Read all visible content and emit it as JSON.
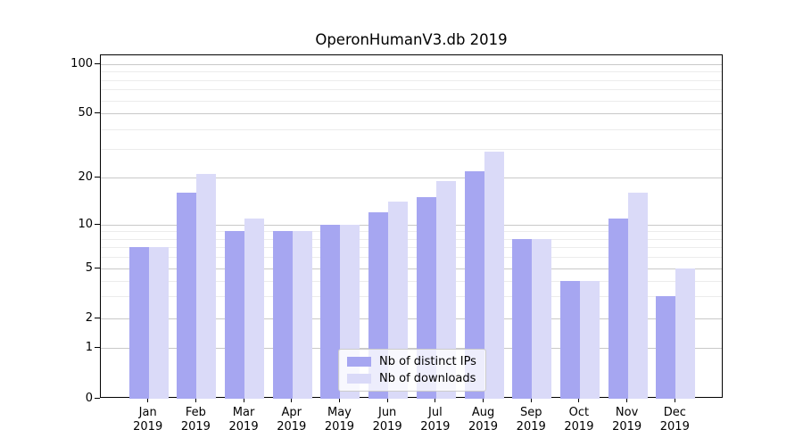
{
  "chart_data": {
    "type": "bar",
    "title": "OperonHumanV3.db 2019",
    "categories": [
      "Jan",
      "Feb",
      "Mar",
      "Apr",
      "May",
      "Jun",
      "Jul",
      "Aug",
      "Sep",
      "Oct",
      "Nov",
      "Dec"
    ],
    "year": "2019",
    "series": [
      {
        "name": "Nb of distinct IPs",
        "color": "#a6a6f1",
        "values": [
          7,
          16,
          9,
          9,
          10,
          12,
          15,
          22,
          8,
          4,
          11,
          3
        ]
      },
      {
        "name": "Nb of downloads",
        "color": "#dadaf8",
        "values": [
          7,
          21,
          11,
          9,
          10,
          14,
          19,
          29,
          8,
          4,
          16,
          5
        ]
      }
    ],
    "xlabel": "",
    "ylabel": "",
    "y_ticks": [
      0,
      1,
      2,
      5,
      10,
      20,
      50,
      100
    ],
    "y_minor_gridlines": [
      3,
      4,
      6,
      7,
      8,
      9,
      30,
      40,
      60,
      70,
      80,
      90
    ],
    "yscale": "symlog",
    "ylim": [
      0,
      113
    ],
    "grid": true,
    "legend_position": "lower center inside plot"
  }
}
